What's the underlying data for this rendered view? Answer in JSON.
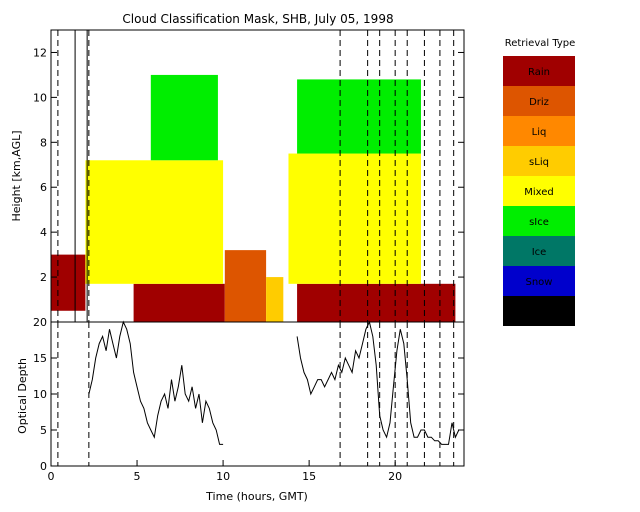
{
  "chart_data": [
    {
      "type": "heatmap",
      "title": "Cloud Classification Mask, SHB, July 05, 1998",
      "ylabel": "Height [km,AGL]",
      "xlim": [
        0,
        24
      ],
      "ylim": [
        0,
        13
      ],
      "yticks": [
        2,
        4,
        6,
        8,
        10,
        12
      ],
      "xticks": [
        0,
        5,
        10,
        15,
        20
      ],
      "legend": {
        "title": "Retrieval Type",
        "position": "right",
        "entries": [
          {
            "label": "Rain",
            "color": "#a00000"
          },
          {
            "label": "Driz",
            "color": "#dd5500"
          },
          {
            "label": "Liq",
            "color": "#ff8800"
          },
          {
            "label": "sLiq",
            "color": "#ffcc00"
          },
          {
            "label": "Mixed",
            "color": "#ffff00"
          },
          {
            "label": "sIce",
            "color": "#00ee00"
          },
          {
            "label": "Ice",
            "color": "#007766"
          },
          {
            "label": "Snow",
            "color": "#0000cc"
          },
          {
            "label": "Uncrt",
            "color": "#000000"
          }
        ]
      },
      "dashed_vertical_lines_hours": [
        0.4,
        2.2,
        16.8,
        18.4,
        19.1,
        20.0,
        20.7,
        21.7,
        22.6,
        23.4
      ],
      "solid_vertical_lines_hours": [
        1.4,
        2.1
      ],
      "regions": [
        {
          "type": "Rain",
          "x": [
            0,
            2.0
          ],
          "y": [
            0.5,
            3.0
          ]
        },
        {
          "type": "Rain",
          "x": [
            4.8,
            10.1
          ],
          "y": [
            0,
            1.7
          ]
        },
        {
          "type": "Driz",
          "x": [
            10.1,
            12.5
          ],
          "y": [
            0,
            3.2
          ]
        },
        {
          "type": "sLiq",
          "x": [
            12.5,
            13.5
          ],
          "y": [
            0,
            2.0
          ]
        },
        {
          "type": "Rain",
          "x": [
            14.3,
            23.5
          ],
          "y": [
            0,
            1.7
          ]
        },
        {
          "type": "Mixed",
          "x": [
            2.0,
            10.0
          ],
          "y": [
            1.7,
            7.2
          ]
        },
        {
          "type": "Mixed",
          "x": [
            13.8,
            21.5
          ],
          "y": [
            1.7,
            7.5
          ]
        },
        {
          "type": "sIce",
          "x": [
            5.8,
            9.7
          ],
          "y": [
            7.2,
            11.0
          ]
        },
        {
          "type": "sIce",
          "x": [
            14.3,
            21.5
          ],
          "y": [
            7.5,
            10.8
          ]
        }
      ]
    },
    {
      "type": "line",
      "xlabel": "Time (hours, GMT)",
      "ylabel": "Optical Depth",
      "xlim": [
        0,
        24
      ],
      "ylim": [
        0,
        20
      ],
      "yticks": [
        0,
        5,
        10,
        15,
        20
      ],
      "xticks": [
        0,
        5,
        10,
        15,
        20
      ],
      "series": [
        {
          "x": [
            2.2,
            2.4,
            2.6,
            2.8,
            3.0,
            3.2,
            3.4,
            3.6,
            3.8,
            4.0,
            4.2,
            4.4,
            4.6,
            4.8,
            5.0,
            5.2,
            5.4,
            5.6,
            5.8,
            6.0,
            6.2,
            6.4,
            6.6,
            6.8,
            7.0,
            7.2,
            7.4,
            7.6,
            7.8,
            8.0,
            8.2,
            8.4,
            8.6,
            8.8,
            9.0,
            9.2,
            9.4,
            9.6,
            9.8,
            10.0,
            14.3,
            14.5,
            14.7,
            14.9,
            15.1,
            15.3,
            15.5,
            15.7,
            15.9,
            16.1,
            16.3,
            16.5,
            16.7,
            16.9,
            17.1,
            17.3,
            17.5,
            17.7,
            17.9,
            18.1,
            18.3,
            18.5,
            18.7,
            18.9,
            19.1,
            19.3,
            19.5,
            19.7,
            19.9,
            20.1,
            20.3,
            20.5,
            20.7,
            20.9,
            21.1,
            21.3,
            21.5,
            21.7,
            21.9,
            22.1,
            22.3,
            22.5,
            22.7,
            22.9,
            23.1,
            23.3,
            23.5,
            23.7
          ],
          "y": [
            10,
            12,
            15,
            17,
            18,
            16,
            19,
            17,
            15,
            18,
            20,
            19,
            17,
            13,
            11,
            9,
            8,
            6,
            5,
            4,
            7,
            9,
            10,
            8,
            12,
            9,
            11,
            14,
            10,
            9,
            11,
            8,
            10,
            6,
            9,
            8,
            6,
            5,
            3,
            3,
            18,
            15,
            13,
            12,
            10,
            11,
            12,
            12,
            11,
            12,
            13,
            12,
            14,
            13,
            15,
            14,
            13,
            16,
            15,
            17,
            19,
            20,
            18,
            14,
            7,
            5,
            4,
            6,
            11,
            16,
            19,
            17,
            12,
            6,
            4,
            4,
            5,
            5,
            4,
            4,
            3.5,
            3.5,
            3,
            3,
            3,
            6,
            4,
            5
          ]
        }
      ]
    }
  ]
}
